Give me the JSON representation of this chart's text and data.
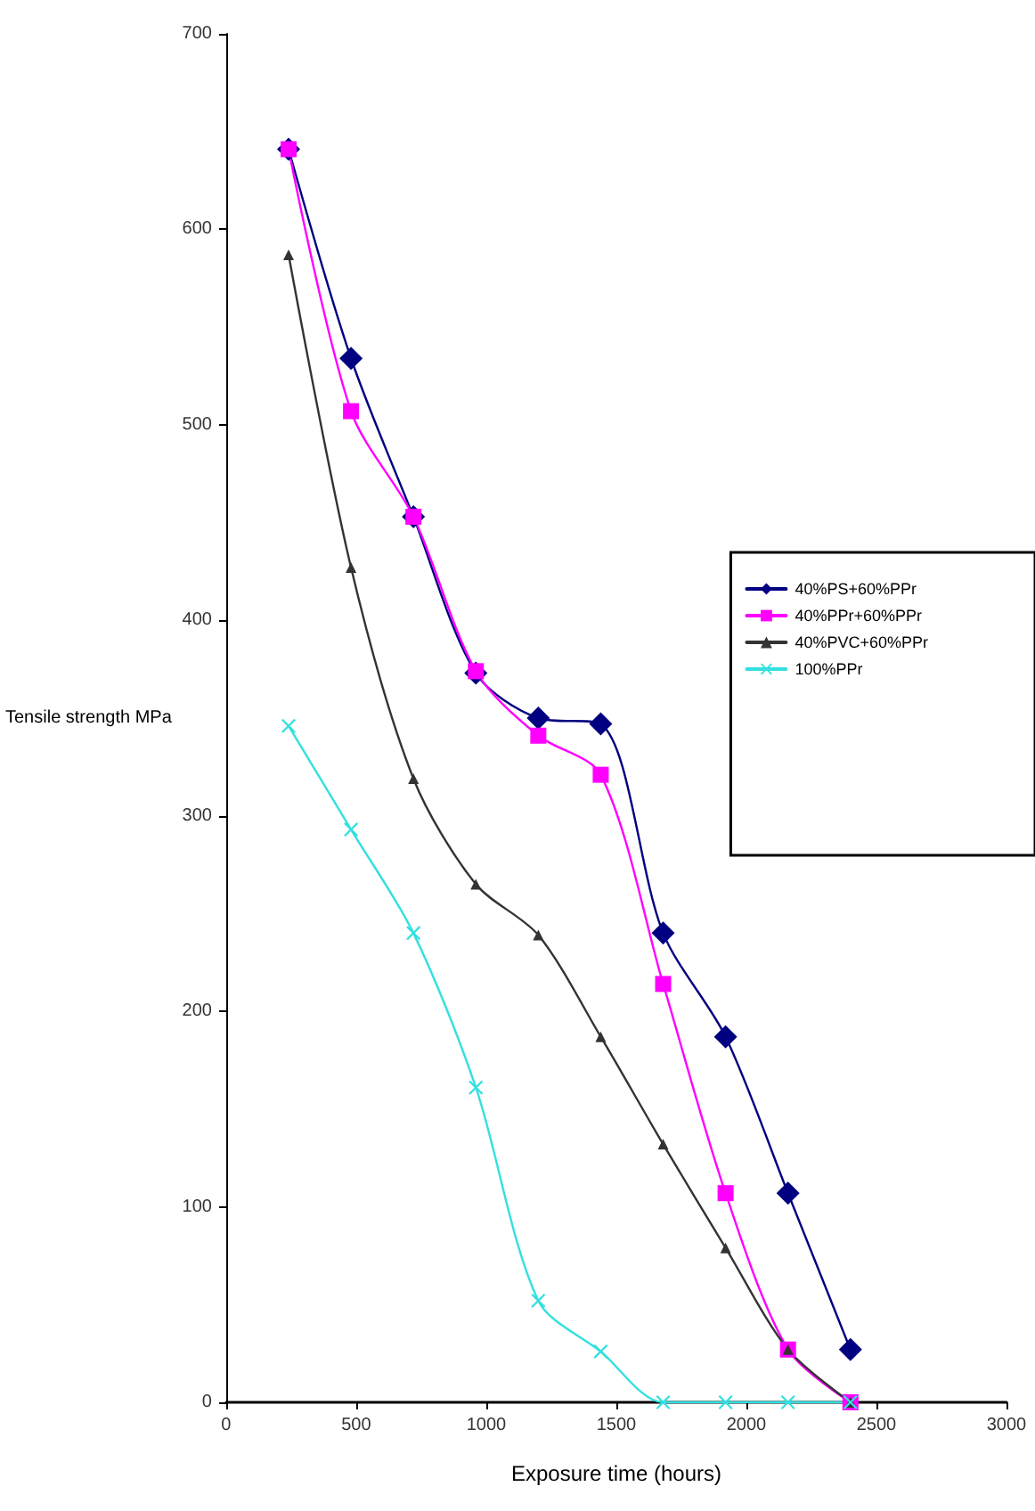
{
  "chart_data": {
    "type": "line",
    "xlabel": "Exposure time (hours)",
    "ylabel": "Tensile strength MPa",
    "x": [
      240,
      480,
      720,
      960,
      1200,
      1440,
      1680,
      1920,
      2160,
      2400
    ],
    "xlim": [
      0,
      3000
    ],
    "xticks": [
      0,
      500,
      1000,
      1500,
      2000,
      2500,
      3000
    ],
    "ylim": [
      0,
      700
    ],
    "yticks": [
      0,
      100,
      200,
      300,
      400,
      500,
      600,
      700
    ],
    "grid": false,
    "legend": "right",
    "line_style": "solid",
    "series": [
      {
        "name": "40%PS+60%PPr",
        "color": "#000080",
        "marker": "diamond",
        "values": [
          641,
          534,
          453,
          373,
          350,
          347,
          240,
          187,
          107,
          27
        ]
      },
      {
        "name": "40%PPr+60%PPr",
        "color": "#ff00ff",
        "marker": "square",
        "values": [
          641,
          507,
          453,
          374,
          341,
          321,
          214,
          107,
          27,
          0
        ]
      },
      {
        "name": "40%PVC+60%PPr",
        "color": "#333333",
        "marker": "triangle",
        "values": [
          587,
          427,
          319,
          265,
          239,
          187,
          132,
          79,
          27,
          0
        ]
      },
      {
        "name": "100%PPr",
        "color": "#33e0e0",
        "marker": "cross",
        "values": [
          346,
          293,
          240,
          161,
          52,
          26,
          0,
          0,
          0,
          0
        ]
      }
    ]
  }
}
